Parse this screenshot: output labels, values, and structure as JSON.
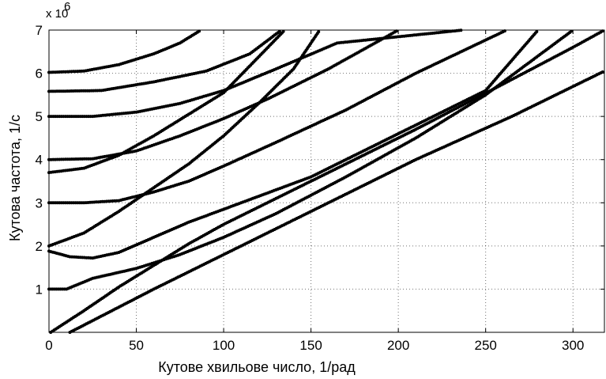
{
  "chart_data": {
    "type": "scatter",
    "title": "",
    "xlabel": "Кутове хвильове число, 1/рад",
    "ylabel": "Кутова частота, 1/с",
    "y_multiplier": "x 10",
    "y_multiplier_exponent": "6",
    "xlim": [
      0,
      318
    ],
    "ylim": [
      0,
      7
    ],
    "x_ticks": [
      0,
      50,
      100,
      150,
      200,
      250,
      300
    ],
    "y_ticks": [
      1,
      2,
      3,
      4,
      5,
      6,
      7
    ],
    "grid": true,
    "marker_color": "#000000",
    "series": [
      {
        "values": [
          [
            12,
            0
          ],
          [
            60,
            1
          ],
          [
            110,
            2
          ],
          [
            160,
            3
          ],
          [
            210,
            4
          ],
          [
            265,
            5
          ],
          [
            318,
            6.05
          ]
        ]
      },
      {
        "values": [
          [
            1,
            0
          ],
          [
            20,
            0.5
          ],
          [
            40,
            1.05
          ],
          [
            60,
            1.55
          ],
          [
            80,
            2.05
          ],
          [
            100,
            2.5
          ],
          [
            130,
            3.1
          ],
          [
            170,
            3.9
          ],
          [
            210,
            4.7
          ],
          [
            260,
            5.75
          ],
          [
            300,
            6.6
          ],
          [
            318,
            7
          ]
        ]
      },
      {
        "values": [
          [
            0,
            1
          ],
          [
            10,
            1
          ],
          [
            25,
            1.25
          ],
          [
            50,
            1.48
          ],
          [
            75,
            1.8
          ],
          [
            100,
            2.2
          ],
          [
            130,
            2.75
          ],
          [
            170,
            3.6
          ],
          [
            210,
            4.5
          ],
          [
            250,
            5.5
          ],
          [
            300,
            7
          ]
        ]
      },
      {
        "values": [
          [
            0,
            1.88
          ],
          [
            12,
            1.75
          ],
          [
            25,
            1.72
          ],
          [
            40,
            1.85
          ],
          [
            60,
            2.2
          ],
          [
            80,
            2.55
          ],
          [
            110,
            3
          ],
          [
            150,
            3.6
          ],
          [
            200,
            4.6
          ],
          [
            250,
            5.6
          ],
          [
            280,
            7
          ]
        ]
      },
      {
        "values": [
          [
            0,
            2
          ],
          [
            20,
            2.3
          ],
          [
            40,
            2.8
          ],
          [
            60,
            3.35
          ],
          [
            80,
            3.9
          ],
          [
            100,
            4.55
          ],
          [
            120,
            5.3
          ],
          [
            140,
            6.1
          ],
          [
            155,
            7
          ]
        ]
      },
      {
        "values": [
          [
            0,
            3
          ],
          [
            20,
            3
          ],
          [
            40,
            3.05
          ],
          [
            60,
            3.25
          ],
          [
            80,
            3.5
          ],
          [
            100,
            3.85
          ],
          [
            130,
            4.4
          ],
          [
            170,
            5.15
          ],
          [
            210,
            6
          ],
          [
            262,
            7
          ]
        ]
      },
      {
        "values": [
          [
            0,
            3.7
          ],
          [
            20,
            3.8
          ],
          [
            40,
            4.1
          ],
          [
            60,
            4.55
          ],
          [
            80,
            5.05
          ],
          [
            100,
            5.55
          ],
          [
            135,
            7
          ]
        ]
      },
      {
        "values": [
          [
            0,
            4
          ],
          [
            25,
            4.02
          ],
          [
            50,
            4.2
          ],
          [
            75,
            4.55
          ],
          [
            100,
            4.95
          ],
          [
            125,
            5.4
          ],
          [
            160,
            6.1
          ],
          [
            200,
            7
          ]
        ]
      },
      {
        "values": [
          [
            0,
            5
          ],
          [
            25,
            5
          ],
          [
            50,
            5.1
          ],
          [
            75,
            5.3
          ],
          [
            100,
            5.6
          ],
          [
            130,
            6.1
          ],
          [
            165,
            6.7
          ],
          [
            237,
            7
          ]
        ]
      },
      {
        "values": [
          [
            0,
            5.58
          ],
          [
            30,
            5.6
          ],
          [
            60,
            5.8
          ],
          [
            90,
            6.05
          ],
          [
            115,
            6.45
          ],
          [
            133,
            7
          ]
        ]
      },
      {
        "values": [
          [
            0,
            6.02
          ],
          [
            20,
            6.05
          ],
          [
            40,
            6.2
          ],
          [
            60,
            6.45
          ],
          [
            75,
            6.7
          ],
          [
            87,
            7
          ]
        ]
      }
    ]
  }
}
